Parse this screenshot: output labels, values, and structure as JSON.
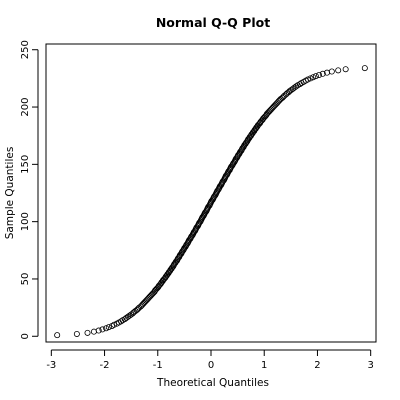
{
  "chart_data": {
    "type": "scatter",
    "title": "Normal Q-Q Plot",
    "xlabel": "Theoretical Quantiles",
    "ylabel": "Sample Quantiles",
    "xlim": [
      -3.1,
      3.1
    ],
    "ylim": [
      -5,
      255
    ],
    "x_ticks": [
      -3,
      -2,
      -1,
      0,
      1,
      2,
      3
    ],
    "y_ticks": [
      0,
      50,
      100,
      150,
      200,
      250
    ],
    "x_tick_labels": [
      "-3",
      "-2",
      "-1",
      "0",
      "1",
      "2",
      "3"
    ],
    "y_tick_labels": [
      "0",
      "50",
      "100",
      "150",
      "200",
      "250"
    ],
    "grid": false,
    "marker": "open-circle",
    "colors": {
      "points": "#000000",
      "axes": "#000000",
      "background": "#ffffff"
    },
    "series": [
      {
        "values": [
          {
            "x": -2.89,
            "y": 1
          },
          {
            "x": -2.52,
            "y": 2
          },
          {
            "x": -2.32,
            "y": 3
          },
          {
            "x": -2.2,
            "y": 4
          },
          {
            "x": -2.11,
            "y": 5
          },
          {
            "x": -2.04,
            "y": 6
          },
          {
            "x": -1.97,
            "y": 7
          },
          {
            "x": -1.92,
            "y": 8
          },
          {
            "x": -1.86,
            "y": 9
          },
          {
            "x": -1.82,
            "y": 10
          },
          {
            "x": -1.77,
            "y": 11
          },
          {
            "x": -1.73,
            "y": 12
          },
          {
            "x": -1.69,
            "y": 13
          },
          {
            "x": -1.66,
            "y": 14
          },
          {
            "x": -1.62,
            "y": 15
          },
          {
            "x": -1.59,
            "y": 16
          },
          {
            "x": -1.56,
            "y": 17
          },
          {
            "x": -1.53,
            "y": 18
          },
          {
            "x": -1.5,
            "y": 19
          },
          {
            "x": -1.47,
            "y": 20
          },
          {
            "x": -1.45,
            "y": 21
          },
          {
            "x": -1.42,
            "y": 22
          },
          {
            "x": -1.39,
            "y": 23
          },
          {
            "x": -1.37,
            "y": 24
          },
          {
            "x": -1.35,
            "y": 25
          },
          {
            "x": -1.32,
            "y": 26
          },
          {
            "x": -1.3,
            "y": 27
          },
          {
            "x": -1.28,
            "y": 28
          },
          {
            "x": -1.26,
            "y": 29
          },
          {
            "x": -1.24,
            "y": 30
          },
          {
            "x": -1.22,
            "y": 31
          },
          {
            "x": -1.2,
            "y": 32
          },
          {
            "x": -1.18,
            "y": 33
          },
          {
            "x": -1.16,
            "y": 34
          },
          {
            "x": -1.14,
            "y": 35
          },
          {
            "x": -1.12,
            "y": 36
          },
          {
            "x": -1.1,
            "y": 37
          },
          {
            "x": -1.08,
            "y": 38
          },
          {
            "x": -1.06,
            "y": 39
          },
          {
            "x": -1.05,
            "y": 40
          },
          {
            "x": -1.03,
            "y": 41
          },
          {
            "x": -1.01,
            "y": 42
          },
          {
            "x": -0.99,
            "y": 43
          },
          {
            "x": -0.98,
            "y": 44
          },
          {
            "x": -0.96,
            "y": 45
          },
          {
            "x": -0.94,
            "y": 46
          },
          {
            "x": -0.93,
            "y": 47
          },
          {
            "x": -0.91,
            "y": 48
          },
          {
            "x": -0.9,
            "y": 49
          },
          {
            "x": -0.88,
            "y": 50
          },
          {
            "x": -0.86,
            "y": 51
          },
          {
            "x": -0.85,
            "y": 52
          },
          {
            "x": -0.83,
            "y": 53
          },
          {
            "x": -0.82,
            "y": 54
          },
          {
            "x": -0.8,
            "y": 55
          },
          {
            "x": -0.79,
            "y": 56
          },
          {
            "x": -0.77,
            "y": 57
          },
          {
            "x": -0.76,
            "y": 58
          },
          {
            "x": -0.74,
            "y": 59
          },
          {
            "x": -0.73,
            "y": 60
          },
          {
            "x": -0.71,
            "y": 61
          },
          {
            "x": -0.7,
            "y": 62
          },
          {
            "x": -0.69,
            "y": 63
          },
          {
            "x": -0.67,
            "y": 64
          },
          {
            "x": -0.66,
            "y": 65
          },
          {
            "x": -0.64,
            "y": 66
          },
          {
            "x": -0.63,
            "y": 67
          },
          {
            "x": -0.62,
            "y": 68
          },
          {
            "x": -0.6,
            "y": 69
          },
          {
            "x": -0.59,
            "y": 70
          },
          {
            "x": -0.58,
            "y": 71
          },
          {
            "x": -0.56,
            "y": 72
          },
          {
            "x": -0.55,
            "y": 73
          },
          {
            "x": -0.54,
            "y": 74
          },
          {
            "x": -0.52,
            "y": 75
          },
          {
            "x": -0.51,
            "y": 76
          },
          {
            "x": -0.5,
            "y": 77
          },
          {
            "x": -0.48,
            "y": 78
          },
          {
            "x": -0.47,
            "y": 79
          },
          {
            "x": -0.46,
            "y": 80
          },
          {
            "x": -0.44,
            "y": 81
          },
          {
            "x": -0.43,
            "y": 82
          },
          {
            "x": -0.42,
            "y": 83
          },
          {
            "x": -0.41,
            "y": 84
          },
          {
            "x": -0.39,
            "y": 85
          },
          {
            "x": -0.38,
            "y": 86
          },
          {
            "x": -0.37,
            "y": 87
          },
          {
            "x": -0.35,
            "y": 88
          },
          {
            "x": -0.34,
            "y": 89
          },
          {
            "x": -0.33,
            "y": 90
          },
          {
            "x": -0.32,
            "y": 91
          },
          {
            "x": -0.3,
            "y": 92
          },
          {
            "x": -0.29,
            "y": 93
          },
          {
            "x": -0.28,
            "y": 94
          },
          {
            "x": -0.27,
            "y": 95
          },
          {
            "x": -0.25,
            "y": 96
          },
          {
            "x": -0.24,
            "y": 97
          },
          {
            "x": -0.23,
            "y": 98
          },
          {
            "x": -0.22,
            "y": 99
          },
          {
            "x": -0.2,
            "y": 100
          },
          {
            "x": -0.19,
            "y": 101
          },
          {
            "x": -0.18,
            "y": 102
          },
          {
            "x": -0.17,
            "y": 103
          },
          {
            "x": -0.16,
            "y": 104
          },
          {
            "x": -0.14,
            "y": 105
          },
          {
            "x": -0.13,
            "y": 106
          },
          {
            "x": -0.12,
            "y": 107
          },
          {
            "x": -0.11,
            "y": 108
          },
          {
            "x": -0.09,
            "y": 109
          },
          {
            "x": -0.08,
            "y": 110
          },
          {
            "x": -0.07,
            "y": 111
          },
          {
            "x": -0.06,
            "y": 112
          },
          {
            "x": -0.05,
            "y": 113
          },
          {
            "x": -0.03,
            "y": 114
          },
          {
            "x": -0.02,
            "y": 115
          },
          {
            "x": -0.01,
            "y": 116
          },
          {
            "x": 0.0,
            "y": 117
          },
          {
            "x": 0.01,
            "y": 118
          },
          {
            "x": 0.03,
            "y": 119
          },
          {
            "x": 0.04,
            "y": 120
          },
          {
            "x": 0.05,
            "y": 121
          },
          {
            "x": 0.06,
            "y": 122
          },
          {
            "x": 0.08,
            "y": 123
          },
          {
            "x": 0.09,
            "y": 124
          },
          {
            "x": 0.1,
            "y": 125
          },
          {
            "x": 0.11,
            "y": 126
          },
          {
            "x": 0.12,
            "y": 127
          },
          {
            "x": 0.14,
            "y": 128
          },
          {
            "x": 0.15,
            "y": 129
          },
          {
            "x": 0.16,
            "y": 130
          },
          {
            "x": 0.17,
            "y": 131
          },
          {
            "x": 0.19,
            "y": 132
          },
          {
            "x": 0.2,
            "y": 133
          },
          {
            "x": 0.21,
            "y": 134
          },
          {
            "x": 0.22,
            "y": 135
          },
          {
            "x": 0.24,
            "y": 136
          },
          {
            "x": 0.25,
            "y": 137
          },
          {
            "x": 0.26,
            "y": 138
          },
          {
            "x": 0.27,
            "y": 139
          },
          {
            "x": 0.28,
            "y": 140
          },
          {
            "x": 0.3,
            "y": 141
          },
          {
            "x": 0.31,
            "y": 142
          },
          {
            "x": 0.32,
            "y": 143
          },
          {
            "x": 0.33,
            "y": 144
          },
          {
            "x": 0.35,
            "y": 145
          },
          {
            "x": 0.36,
            "y": 146
          },
          {
            "x": 0.37,
            "y": 147
          },
          {
            "x": 0.38,
            "y": 148
          },
          {
            "x": 0.4,
            "y": 149
          },
          {
            "x": 0.41,
            "y": 150
          },
          {
            "x": 0.42,
            "y": 151
          },
          {
            "x": 0.44,
            "y": 152
          },
          {
            "x": 0.45,
            "y": 153
          },
          {
            "x": 0.46,
            "y": 154
          },
          {
            "x": 0.47,
            "y": 155
          },
          {
            "x": 0.49,
            "y": 156
          },
          {
            "x": 0.5,
            "y": 157
          },
          {
            "x": 0.51,
            "y": 158
          },
          {
            "x": 0.53,
            "y": 159
          },
          {
            "x": 0.54,
            "y": 160
          },
          {
            "x": 0.55,
            "y": 161
          },
          {
            "x": 0.57,
            "y": 162
          },
          {
            "x": 0.58,
            "y": 163
          },
          {
            "x": 0.59,
            "y": 164
          },
          {
            "x": 0.61,
            "y": 165
          },
          {
            "x": 0.62,
            "y": 166
          },
          {
            "x": 0.63,
            "y": 167
          },
          {
            "x": 0.65,
            "y": 168
          },
          {
            "x": 0.66,
            "y": 169
          },
          {
            "x": 0.68,
            "y": 170
          },
          {
            "x": 0.69,
            "y": 171
          },
          {
            "x": 0.7,
            "y": 172
          },
          {
            "x": 0.72,
            "y": 173
          },
          {
            "x": 0.73,
            "y": 174
          },
          {
            "x": 0.75,
            "y": 175
          },
          {
            "x": 0.76,
            "y": 176
          },
          {
            "x": 0.78,
            "y": 177
          },
          {
            "x": 0.79,
            "y": 178
          },
          {
            "x": 0.81,
            "y": 179
          },
          {
            "x": 0.82,
            "y": 180
          },
          {
            "x": 0.84,
            "y": 181
          },
          {
            "x": 0.85,
            "y": 182
          },
          {
            "x": 0.87,
            "y": 183
          },
          {
            "x": 0.88,
            "y": 184
          },
          {
            "x": 0.9,
            "y": 185
          },
          {
            "x": 0.92,
            "y": 186
          },
          {
            "x": 0.93,
            "y": 187
          },
          {
            "x": 0.95,
            "y": 188
          },
          {
            "x": 0.97,
            "y": 189
          },
          {
            "x": 0.98,
            "y": 190
          },
          {
            "x": 1.0,
            "y": 191
          },
          {
            "x": 1.02,
            "y": 192
          },
          {
            "x": 1.04,
            "y": 193
          },
          {
            "x": 1.05,
            "y": 194
          },
          {
            "x": 1.07,
            "y": 195
          },
          {
            "x": 1.09,
            "y": 196
          },
          {
            "x": 1.11,
            "y": 197
          },
          {
            "x": 1.13,
            "y": 198
          },
          {
            "x": 1.15,
            "y": 199
          },
          {
            "x": 1.17,
            "y": 200
          },
          {
            "x": 1.19,
            "y": 201
          },
          {
            "x": 1.21,
            "y": 202
          },
          {
            "x": 1.23,
            "y": 203
          },
          {
            "x": 1.25,
            "y": 204
          },
          {
            "x": 1.27,
            "y": 205
          },
          {
            "x": 1.29,
            "y": 206
          },
          {
            "x": 1.31,
            "y": 207
          },
          {
            "x": 1.34,
            "y": 208
          },
          {
            "x": 1.36,
            "y": 209
          },
          {
            "x": 1.38,
            "y": 210
          },
          {
            "x": 1.41,
            "y": 211
          },
          {
            "x": 1.43,
            "y": 212
          },
          {
            "x": 1.46,
            "y": 213
          },
          {
            "x": 1.48,
            "y": 214
          },
          {
            "x": 1.51,
            "y": 215
          },
          {
            "x": 1.54,
            "y": 216
          },
          {
            "x": 1.57,
            "y": 217
          },
          {
            "x": 1.6,
            "y": 218
          },
          {
            "x": 1.63,
            "y": 219
          },
          {
            "x": 1.67,
            "y": 220
          },
          {
            "x": 1.7,
            "y": 221
          },
          {
            "x": 1.74,
            "y": 222
          },
          {
            "x": 1.78,
            "y": 223
          },
          {
            "x": 1.82,
            "y": 224
          },
          {
            "x": 1.87,
            "y": 225
          },
          {
            "x": 1.92,
            "y": 226
          },
          {
            "x": 1.97,
            "y": 227
          },
          {
            "x": 2.03,
            "y": 228
          },
          {
            "x": 2.1,
            "y": 229
          },
          {
            "x": 2.18,
            "y": 230
          },
          {
            "x": 2.27,
            "y": 231
          },
          {
            "x": 2.39,
            "y": 232
          },
          {
            "x": 2.53,
            "y": 233
          },
          {
            "x": 2.89,
            "y": 234
          }
        ]
      }
    ]
  }
}
